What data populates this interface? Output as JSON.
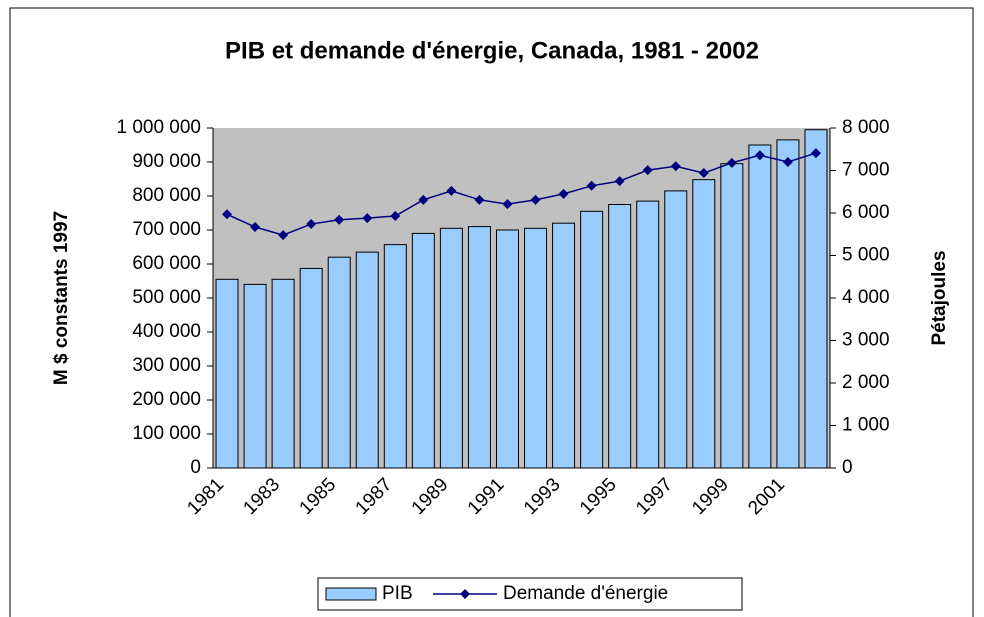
{
  "chart_data": {
    "type": "bar_line",
    "title": "PIB et demande d'énergie, Canada, 1981 - 2002",
    "y_label": "M $ constants 1997",
    "y2_label": "Pétajoules",
    "categories": [
      "1981",
      null,
      "1983",
      null,
      "1985",
      null,
      "1987",
      null,
      "1989",
      null,
      "1991",
      null,
      "1993",
      null,
      "1995",
      null,
      "1997",
      null,
      "1999",
      null,
      "2001",
      null
    ],
    "series": [
      {
        "name": "PIB",
        "type": "bar",
        "color": "#99ccff",
        "values": [
          555000,
          540000,
          555000,
          587000,
          620000,
          635000,
          657000,
          690000,
          705000,
          710000,
          700000,
          705000,
          720000,
          755000,
          775000,
          785000,
          815000,
          848000,
          895000,
          950000,
          965000,
          995000
        ]
      },
      {
        "name": "Demande d'énergie",
        "type": "line",
        "axis": "y2",
        "color": "#000080",
        "values": [
          5970,
          5670,
          5480,
          5740,
          5840,
          5880,
          5930,
          6310,
          6520,
          6310,
          6210,
          6310,
          6450,
          6640,
          6750,
          7010,
          7100,
          6940,
          7180,
          7360,
          7200,
          7410
        ]
      }
    ],
    "ylim": [
      0,
      1000000
    ],
    "yticks": [
      0,
      {
        "value": 100000,
        "label": "100 000"
      },
      {
        "value": 200000,
        "label": "200 000"
      },
      {
        "value": 300000,
        "label": "300 000"
      },
      {
        "value": 400000,
        "label": "400 000"
      },
      {
        "value": 500000,
        "label": "500 000"
      },
      {
        "value": 600000,
        "label": "600 000"
      },
      {
        "value": 700000,
        "label": "700 000"
      },
      {
        "value": 800000,
        "label": "800 000"
      },
      {
        "value": 900000,
        "label": "900 000"
      },
      {
        "value": 1000000,
        "label": "1 000 000"
      }
    ],
    "y2lim": [
      0,
      8000
    ],
    "y2ticks": [
      0,
      {
        "value": 1000,
        "label": "1 000"
      },
      {
        "value": 2000,
        "label": "2 000"
      },
      {
        "value": 3000,
        "label": "3 000"
      },
      {
        "value": 4000,
        "label": "4 000"
      },
      {
        "value": 5000,
        "label": "5 000"
      },
      {
        "value": 6000,
        "label": "6 000"
      },
      {
        "value": 7000,
        "label": "7 000"
      },
      {
        "value": 8000,
        "label": "8 000"
      }
    ],
    "legend": "bottom"
  }
}
